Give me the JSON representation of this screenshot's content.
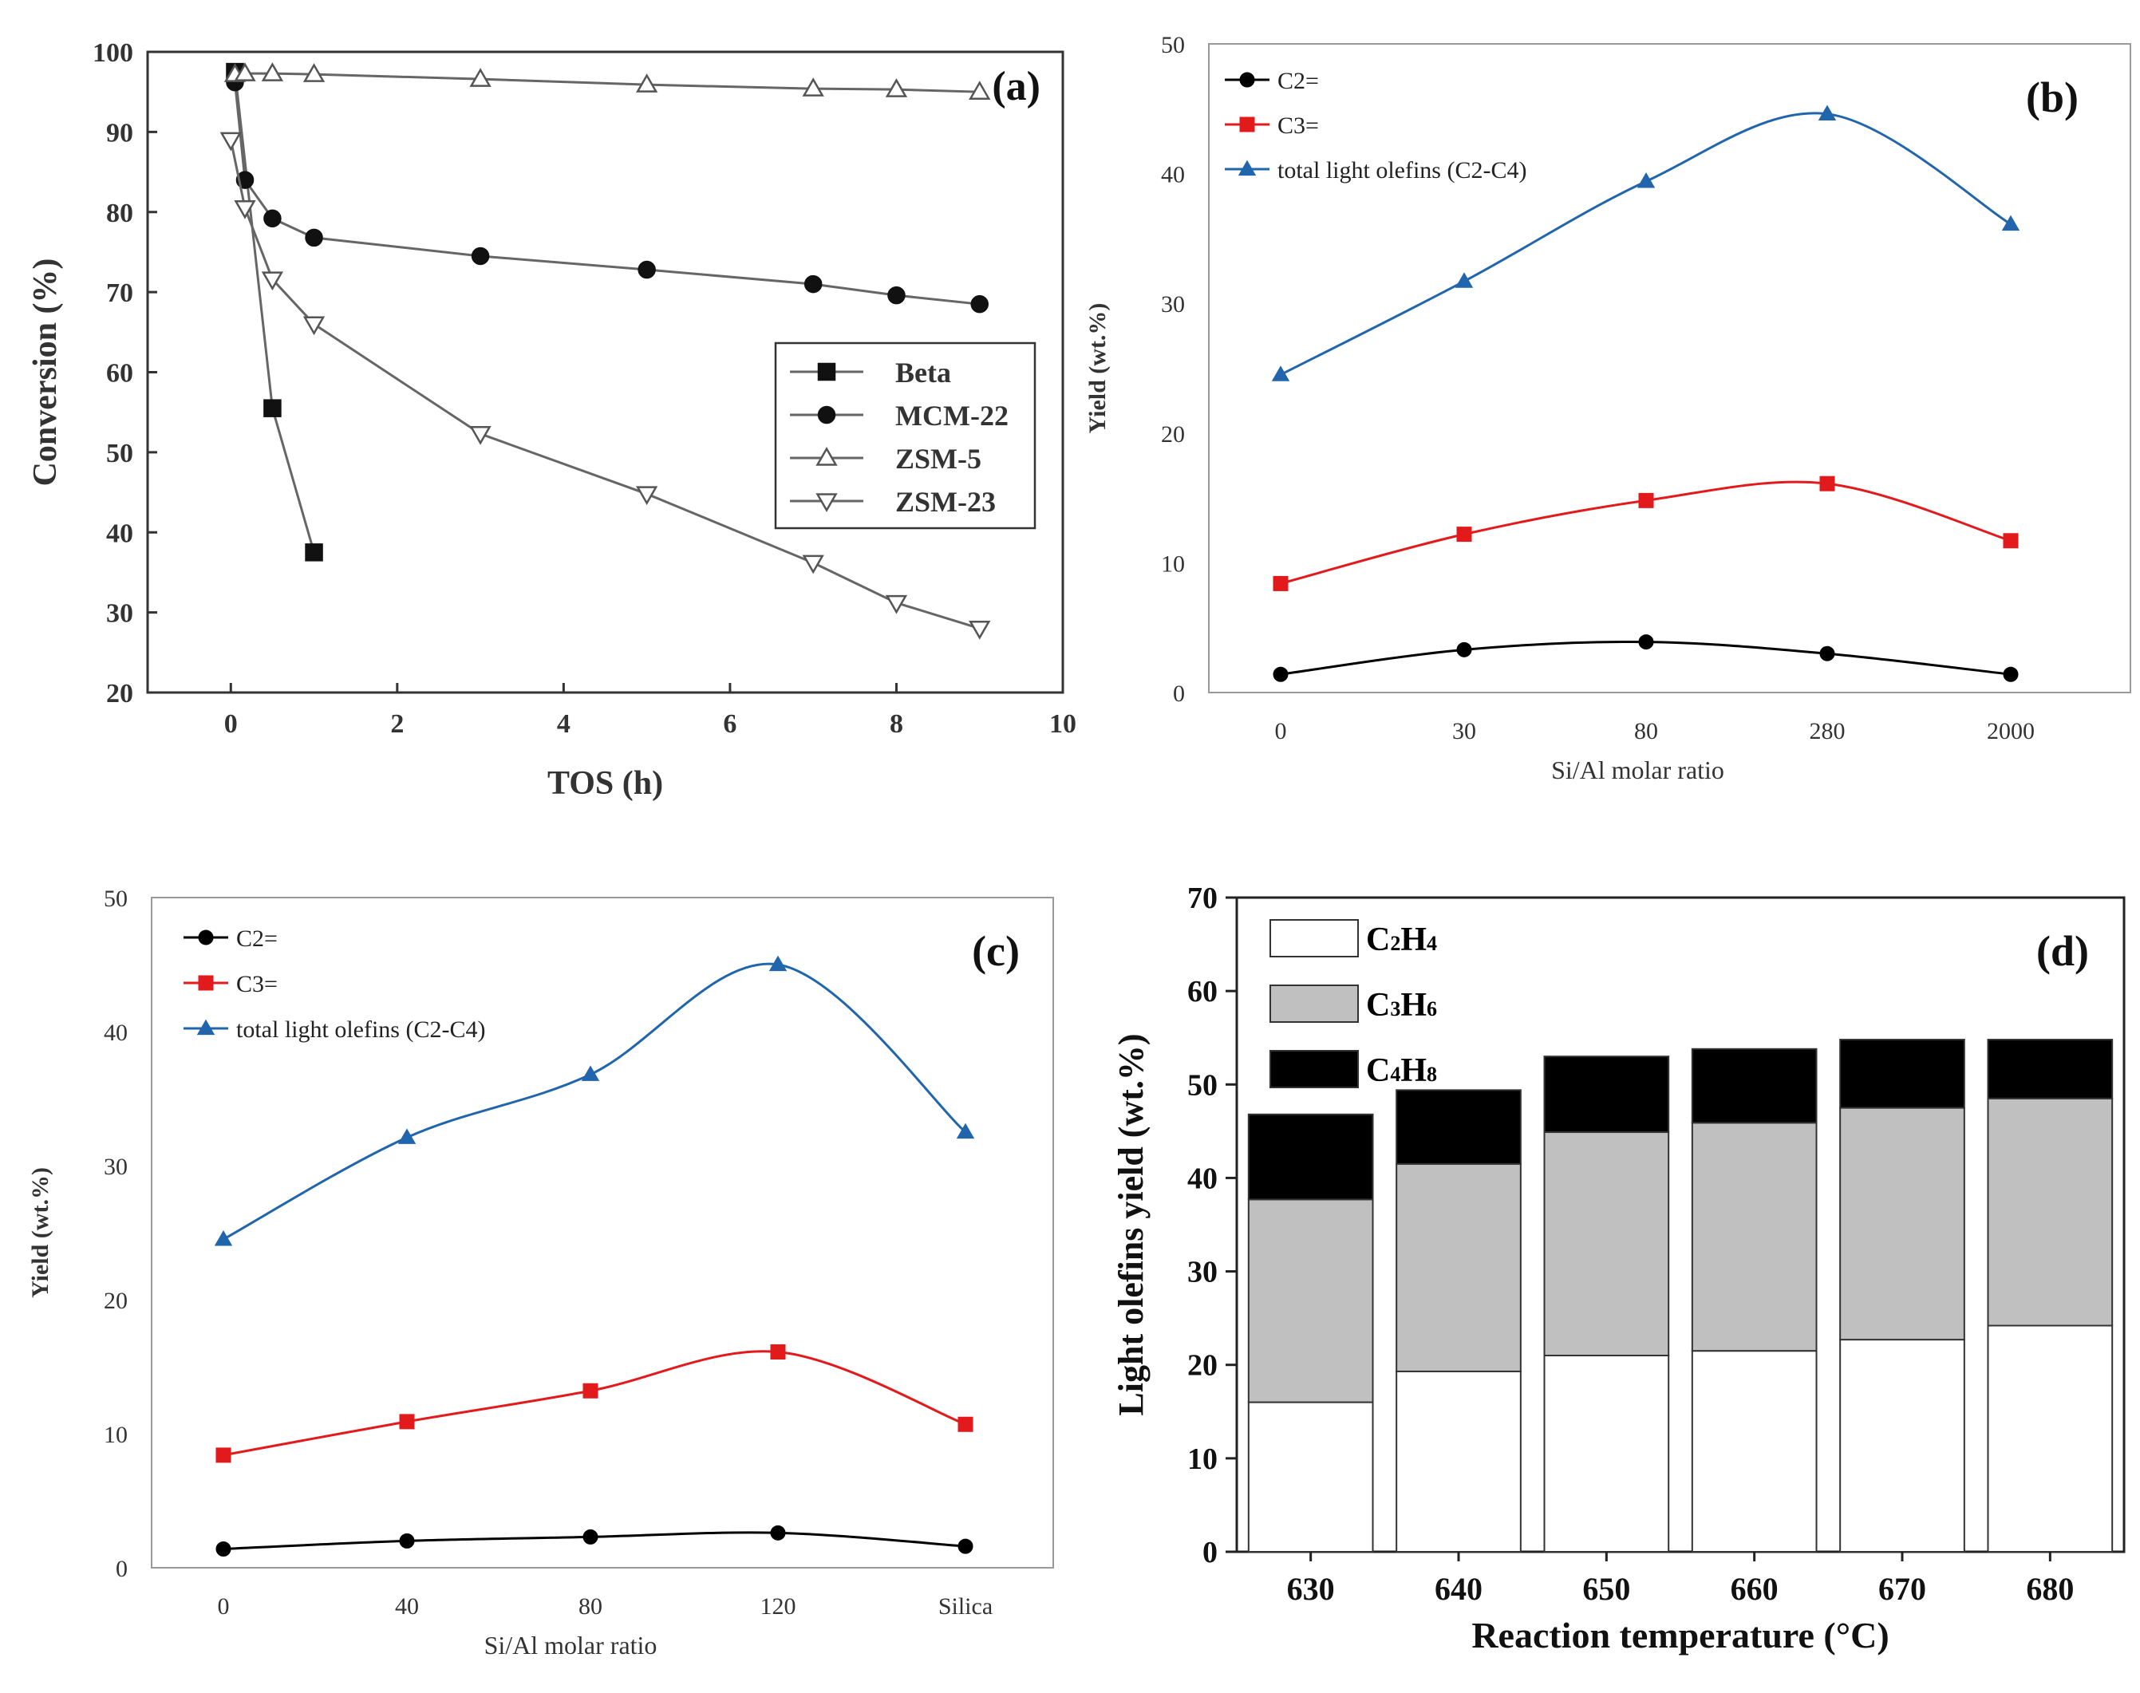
{
  "chart_data": [
    {
      "type": "line",
      "panel_label": "(a)",
      "xlabel": "TOS (h)",
      "ylabel": "Conversion (%)",
      "xlim": [
        -1,
        10
      ],
      "ylim": [
        20,
        100
      ],
      "xticks": [
        0,
        2,
        4,
        6,
        8,
        10
      ],
      "yticks": [
        20,
        30,
        40,
        50,
        60,
        70,
        80,
        90,
        100
      ],
      "legend_position": "right",
      "grid": false,
      "series": [
        {
          "name": "Beta",
          "marker": "square",
          "color": "#555555",
          "x": [
            0.05,
            0.5,
            1.0
          ],
          "y": [
            97.5,
            55.5,
            37.5
          ]
        },
        {
          "name": "MCM-22",
          "marker": "circle",
          "color": "#555555",
          "x": [
            0.05,
            0.17,
            0.5,
            1,
            3,
            5,
            7,
            8,
            9
          ],
          "y": [
            96.2,
            84,
            79.2,
            76.8,
            74.5,
            72.8,
            71,
            69.6,
            68.5
          ]
        },
        {
          "name": "ZSM-5",
          "marker": "triangle-up",
          "color": "#777777",
          "x": [
            0.05,
            0.17,
            0.5,
            1,
            3,
            5,
            7,
            8,
            9
          ],
          "y": [
            97.2,
            97.3,
            97.3,
            97.2,
            96.6,
            95.9,
            95.4,
            95.3,
            95.0
          ]
        },
        {
          "name": "ZSM-23",
          "marker": "triangle-down",
          "color": "#777777",
          "x": [
            0.0,
            0.17,
            0.5,
            1,
            3,
            5,
            7,
            8,
            9
          ],
          "y": [
            89,
            80.5,
            71.6,
            66,
            52.3,
            44.8,
            36.2,
            31.2,
            28
          ]
        }
      ]
    },
    {
      "type": "line",
      "panel_label": "(b)",
      "xlabel": "Si/Al molar ratio",
      "ylabel": "Yield (wt.%)",
      "categories": [
        "0",
        "30",
        "80",
        "280",
        "2000"
      ],
      "ylim": [
        0,
        50
      ],
      "yticks": [
        0,
        10,
        20,
        30,
        40,
        50
      ],
      "legend_position": "top-left",
      "grid": false,
      "series": [
        {
          "name": "C2=",
          "marker": "circle",
          "color": "#000000",
          "values": [
            1.4,
            3.3,
            3.9,
            3.0,
            1.4
          ]
        },
        {
          "name": "C3=",
          "marker": "square",
          "color": "#e31a1c",
          "values": [
            8.4,
            12.2,
            14.8,
            16.1,
            11.7
          ]
        },
        {
          "name": "total light olefins (C2-C4)",
          "marker": "triangle-up",
          "color": "#2166ac",
          "values": [
            24.5,
            31.7,
            39.4,
            44.6,
            36.1
          ]
        }
      ]
    },
    {
      "type": "line",
      "panel_label": "(c)",
      "xlabel": "Si/Al molar ratio",
      "ylabel": "Yield (wt.%)",
      "categories": [
        "0",
        "40",
        "80",
        "120",
        "Silica"
      ],
      "ylim": [
        0,
        50
      ],
      "yticks": [
        0,
        10,
        20,
        30,
        40,
        50
      ],
      "legend_position": "top-left",
      "grid": false,
      "series": [
        {
          "name": "C2=",
          "marker": "circle",
          "color": "#000000",
          "values": [
            1.4,
            2.0,
            2.3,
            2.6,
            1.6
          ]
        },
        {
          "name": "C3=",
          "marker": "square",
          "color": "#e31a1c",
          "values": [
            8.4,
            10.9,
            13.2,
            16.1,
            10.7
          ]
        },
        {
          "name": "total light olefins (C2-C4)",
          "marker": "triangle-up",
          "color": "#2166ac",
          "values": [
            24.5,
            32.1,
            36.8,
            45.0,
            32.5
          ]
        }
      ]
    },
    {
      "type": "bar",
      "stacked": true,
      "panel_label": "(d)",
      "xlabel": "Reaction temperature (°C)",
      "ylabel": "Light olefins yield (wt.%)",
      "categories": [
        "630",
        "640",
        "650",
        "660",
        "670",
        "680"
      ],
      "ylim": [
        0,
        70
      ],
      "yticks": [
        0,
        10,
        20,
        30,
        40,
        50,
        60,
        70
      ],
      "legend_position": "top-left",
      "grid": false,
      "series": [
        {
          "name": "C₂H₄",
          "color": "#ffffff",
          "values": [
            16,
            19.3,
            21,
            21.5,
            22.7,
            24.2
          ]
        },
        {
          "name": "C₃H₆",
          "color": "#c0c0c0",
          "values": [
            21.7,
            22.2,
            23.9,
            24.4,
            24.8,
            24.3
          ]
        },
        {
          "name": "C₄H₈",
          "color": "#000000",
          "values": [
            9.1,
            7.9,
            8.1,
            7.9,
            7.3,
            6.3
          ]
        }
      ]
    }
  ]
}
